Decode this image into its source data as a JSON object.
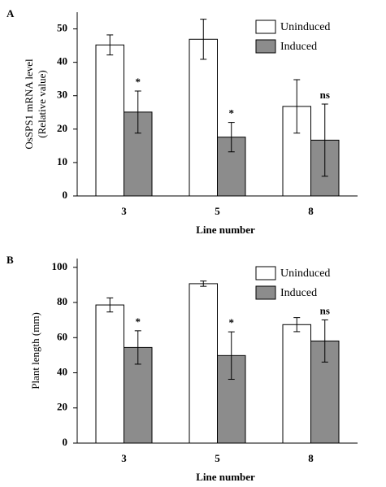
{
  "chart_data": [
    {
      "type": "bar",
      "panel_label": "A",
      "y_label": "OsSPS1 mRNA level\n(Relative value)",
      "x_label": "Line number",
      "categories": [
        "3",
        "5",
        "8"
      ],
      "series": [
        {
          "name": "Uninduced",
          "color": "#ffffff",
          "values": [
            45.2,
            46.9,
            26.8
          ],
          "errors": [
            3,
            6,
            8
          ]
        },
        {
          "name": "Induced",
          "color": "#8c8c8c",
          "values": [
            25.1,
            17.6,
            16.7
          ],
          "errors": [
            6.3,
            4.4,
            10.8
          ]
        }
      ],
      "annotations": [
        "*",
        "*",
        "ns"
      ],
      "ylim": [
        0,
        55
      ],
      "yticks": [
        0,
        10,
        20,
        30,
        40,
        50
      ],
      "legend": "upper right"
    },
    {
      "type": "bar",
      "panel_label": "B",
      "y_label": "Plant length (mm)",
      "x_label": "Line number",
      "categories": [
        "3",
        "5",
        "8"
      ],
      "series": [
        {
          "name": "Uninduced",
          "color": "#ffffff",
          "values": [
            78.6,
            90.7,
            67.4
          ],
          "errors": [
            4,
            1.5,
            4
          ]
        },
        {
          "name": "Induced",
          "color": "#8c8c8c",
          "values": [
            54.4,
            49.8,
            58.1
          ],
          "errors": [
            9.5,
            13.5,
            12
          ]
        }
      ],
      "annotations": [
        "*",
        "*",
        "ns"
      ],
      "ylim": [
        0,
        105
      ],
      "yticks": [
        0,
        20,
        40,
        60,
        80,
        100
      ],
      "legend": "upper right"
    }
  ]
}
